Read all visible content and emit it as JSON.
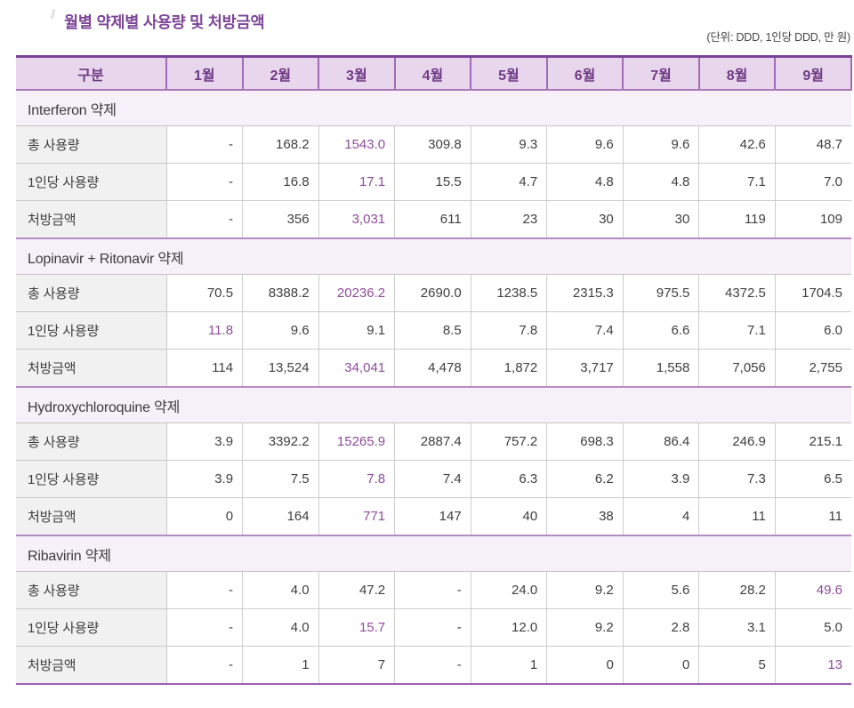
{
  "title": "월별 약제별 사용량 및 처방금액",
  "unit_note": "(단위: DDD, 1인당 DDD, 만 원)",
  "colors": {
    "title_purple": "#7c4597",
    "header_bg": "#e8d6ec",
    "header_text": "#6e3a85",
    "header_border": "#a06cb2",
    "table_top_border": "#7b4397",
    "table_bottom_border": "#9c5fae",
    "section_bg": "#f6f0f8",
    "section_top_border": "#b58ac5",
    "label_bg": "#f2f1f2",
    "grid_line": "#cccccc",
    "body_text": "#3f3f3f",
    "highlight_purple": "#8e4b9c"
  },
  "table": {
    "header": [
      "구분",
      "1월",
      "2월",
      "3월",
      "4월",
      "5월",
      "6월",
      "7월",
      "8월",
      "9월"
    ],
    "sections": [
      {
        "name": "Interferon 약제",
        "rows": [
          {
            "label": "총 사용량",
            "values": [
              "-",
              "168.2",
              "1543.0",
              "309.8",
              "9.3",
              "9.6",
              "9.6",
              "42.6",
              "48.7"
            ],
            "highlight": [
              2
            ]
          },
          {
            "label": "1인당 사용량",
            "values": [
              "-",
              "16.8",
              "17.1",
              "15.5",
              "4.7",
              "4.8",
              "4.8",
              "7.1",
              "7.0"
            ],
            "highlight": [
              2
            ]
          },
          {
            "label": "처방금액",
            "values": [
              "-",
              "356",
              "3,031",
              "611",
              "23",
              "30",
              "30",
              "119",
              "109"
            ],
            "highlight": [
              2
            ]
          }
        ]
      },
      {
        "name": "Lopinavir + Ritonavir 약제",
        "rows": [
          {
            "label": "총 사용량",
            "values": [
              "70.5",
              "8388.2",
              "20236.2",
              "2690.0",
              "1238.5",
              "2315.3",
              "975.5",
              "4372.5",
              "1704.5"
            ],
            "highlight": [
              2
            ]
          },
          {
            "label": "1인당 사용량",
            "values": [
              "11.8",
              "9.6",
              "9.1",
              "8.5",
              "7.8",
              "7.4",
              "6.6",
              "7.1",
              "6.0"
            ],
            "highlight": [
              0
            ]
          },
          {
            "label": "처방금액",
            "values": [
              "114",
              "13,524",
              "34,041",
              "4,478",
              "1,872",
              "3,717",
              "1,558",
              "7,056",
              "2,755"
            ],
            "highlight": [
              2
            ]
          }
        ]
      },
      {
        "name": "Hydroxychloroquine 약제",
        "rows": [
          {
            "label": "총 사용량",
            "values": [
              "3.9",
              "3392.2",
              "15265.9",
              "2887.4",
              "757.2",
              "698.3",
              "86.4",
              "246.9",
              "215.1"
            ],
            "highlight": [
              2
            ]
          },
          {
            "label": "1인당 사용량",
            "values": [
              "3.9",
              "7.5",
              "7.8",
              "7.4",
              "6.3",
              "6.2",
              "3.9",
              "7.3",
              "6.5"
            ],
            "highlight": [
              2
            ]
          },
          {
            "label": "처방금액",
            "values": [
              "0",
              "164",
              "771",
              "147",
              "40",
              "38",
              "4",
              "11",
              "11"
            ],
            "highlight": [
              2
            ]
          }
        ]
      },
      {
        "name": "Ribavirin 약제",
        "rows": [
          {
            "label": "총 사용량",
            "values": [
              "-",
              "4.0",
              "47.2",
              "-",
              "24.0",
              "9.2",
              "5.6",
              "28.2",
              "49.6"
            ],
            "highlight": [
              8
            ]
          },
          {
            "label": "1인당 사용량",
            "values": [
              "-",
              "4.0",
              "15.7",
              "-",
              "12.0",
              "9.2",
              "2.8",
              "3.1",
              "5.0"
            ],
            "highlight": [
              2
            ]
          },
          {
            "label": "처방금액",
            "values": [
              "-",
              "1",
              "7",
              "-",
              "1",
              "0",
              "0",
              "5",
              "13"
            ],
            "highlight": [
              8
            ]
          }
        ]
      }
    ]
  }
}
